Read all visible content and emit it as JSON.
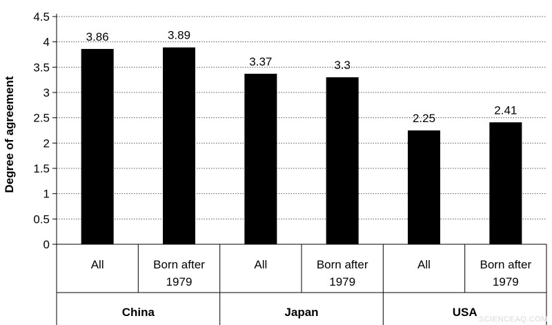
{
  "chart_data": {
    "type": "bar",
    "ylabel": "Degree of agreement",
    "ylim": [
      0,
      4.5
    ],
    "yticks": [
      0,
      0.5,
      1,
      1.5,
      2,
      2.5,
      3,
      3.5,
      4,
      4.5
    ],
    "yticks_text": [
      "0",
      "0.5",
      "1",
      "1.5",
      "2",
      "2.5",
      "3",
      "3.5",
      "4",
      "4.5"
    ],
    "grid": "dotted horizontal",
    "bar_color": "#000000",
    "groups": [
      {
        "name": "China",
        "categories": [
          {
            "label": "All",
            "value": 3.86,
            "value_text": "3.86"
          },
          {
            "label": "Born after 1979",
            "value": 3.89,
            "value_text": "3.89"
          }
        ]
      },
      {
        "name": "Japan",
        "categories": [
          {
            "label": "All",
            "value": 3.37,
            "value_text": "3.37"
          },
          {
            "label": "Born after 1979",
            "value": 3.3,
            "value_text": "3.3"
          }
        ]
      },
      {
        "name": "USA",
        "categories": [
          {
            "label": "All",
            "value": 2.25,
            "value_text": "2.25"
          },
          {
            "label": "Born after 1979",
            "value": 2.41,
            "value_text": "2.41"
          }
        ]
      }
    ],
    "watermark": "SCIENCEAQ.COM"
  }
}
